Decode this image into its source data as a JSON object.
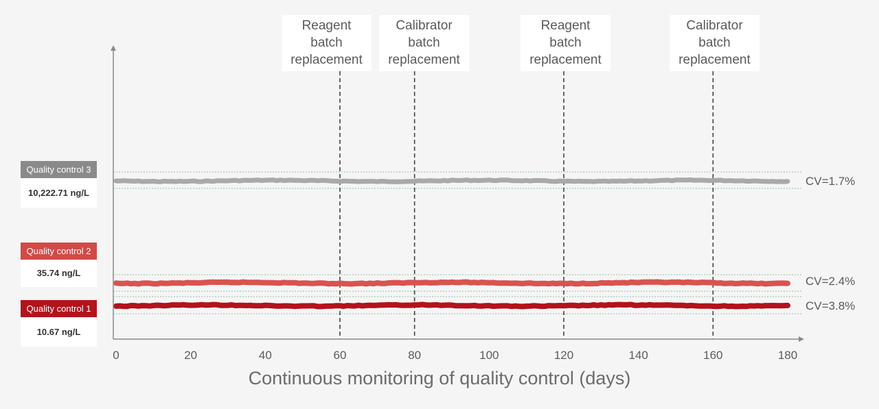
{
  "chart_data": {
    "type": "line",
    "title": "",
    "xlabel": "Continuous monitoring of quality control (days)",
    "ylabel": "",
    "xlim": [
      0,
      180
    ],
    "x_ticks": [
      0,
      20,
      40,
      60,
      80,
      100,
      120,
      140,
      160,
      180
    ],
    "series": [
      {
        "name": "Quality control 3",
        "value_label": "10,222.71 ng/L",
        "cv_label": "CV=1.7%",
        "color": "#a9a9a9",
        "header_color": "#8a8a8a"
      },
      {
        "name": "Quality control 2",
        "value_label": "35.74 ng/L",
        "cv_label": "CV=2.4%",
        "color": "#d9534f",
        "header_color": "#d24a47"
      },
      {
        "name": "Quality control 1",
        "value_label": "10.67 ng/L",
        "cv_label": "CV=3.8%",
        "color": "#b3131b",
        "header_color": "#b3131b"
      }
    ],
    "events": [
      {
        "day": 60,
        "lines": [
          "Reagent",
          "batch",
          "replacement"
        ]
      },
      {
        "day": 80,
        "lines": [
          "Calibrator",
          "batch",
          "replacement"
        ]
      },
      {
        "day": 120,
        "lines": [
          "Reagent",
          "batch",
          "replacement"
        ]
      },
      {
        "day": 160,
        "lines": [
          "Calibrator",
          "batch",
          "replacement"
        ]
      }
    ],
    "grid_color": "#8fbfa0",
    "axis_color": "#8a8a8a"
  }
}
